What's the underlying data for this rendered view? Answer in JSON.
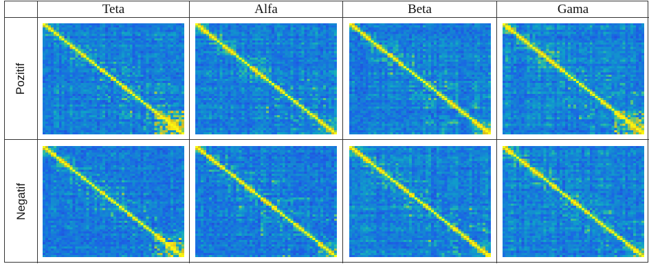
{
  "table": {
    "columns": [
      "Teta",
      "Alfa",
      "Beta",
      "Gama"
    ],
    "rows": [
      "Pozitif",
      "Negatif"
    ]
  },
  "colormap": [
    "#352a87",
    "#2d3ec0",
    "#1b63e6",
    "#1583d4",
    "#0fa3c8",
    "#2ebf9e",
    "#8ccb5d",
    "#d5bb21",
    "#f6dd18",
    "#f9fb0e"
  ],
  "matrices": [
    {
      "row": "Pozitif",
      "column": "Teta",
      "seed": 11,
      "bright_tail": true
    },
    {
      "row": "Pozitif",
      "column": "Alfa",
      "seed": 23,
      "bright_tail": false
    },
    {
      "row": "Pozitif",
      "column": "Beta",
      "seed": 37,
      "bright_tail": false
    },
    {
      "row": "Pozitif",
      "column": "Gama",
      "seed": 41,
      "bright_tail": true
    },
    {
      "row": "Negatif",
      "column": "Teta",
      "seed": 53,
      "bright_tail": true
    },
    {
      "row": "Negatif",
      "column": "Alfa",
      "seed": 67,
      "bright_tail": false
    },
    {
      "row": "Negatif",
      "column": "Beta",
      "seed": 71,
      "bright_tail": false
    },
    {
      "row": "Negatif",
      "column": "Gama",
      "seed": 89,
      "bright_tail": false
    }
  ]
}
